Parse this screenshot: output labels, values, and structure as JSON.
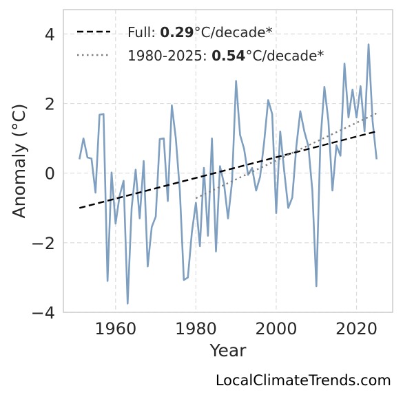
{
  "chart_data": {
    "type": "line",
    "xlabel": "Year",
    "ylabel": "Anomaly (°C)",
    "xlim": [
      1947,
      2029
    ],
    "ylim": [
      -4,
      4.7
    ],
    "x_ticks": [
      1960,
      1980,
      2000,
      2020
    ],
    "y_ticks": [
      -4,
      -2,
      0,
      2,
      4
    ],
    "y_tick_labels": [
      "−4",
      "−2",
      "0",
      "2",
      "4"
    ],
    "grid": true,
    "legend_position": "top-left",
    "series": [
      {
        "style": "solid",
        "color": "#7f9fc0",
        "x": [
          1951,
          1952,
          1953,
          1954,
          1955,
          1956,
          1957,
          1958,
          1959,
          1960,
          1961,
          1962,
          1963,
          1964,
          1965,
          1966,
          1967,
          1968,
          1969,
          1970,
          1971,
          1972,
          1973,
          1974,
          1975,
          1976,
          1977,
          1978,
          1979,
          1980,
          1981,
          1982,
          1983,
          1984,
          1985,
          1986,
          1987,
          1988,
          1989,
          1990,
          1991,
          1992,
          1993,
          1994,
          1995,
          1996,
          1997,
          1998,
          1999,
          2000,
          2001,
          2002,
          2003,
          2004,
          2005,
          2006,
          2007,
          2008,
          2009,
          2010,
          2011,
          2012,
          2013,
          2014,
          2015,
          2016,
          2017,
          2018,
          2019,
          2020,
          2021,
          2022,
          2023,
          2024,
          2025
        ],
        "values": [
          0.4,
          1.0,
          0.45,
          0.42,
          -0.56,
          1.68,
          1.7,
          -3.1,
          0.02,
          -1.45,
          -0.65,
          -0.22,
          -3.75,
          -1.0,
          0.1,
          -1.3,
          0.35,
          -2.68,
          -1.55,
          -1.25,
          0.98,
          1.0,
          -0.8,
          1.95,
          1.0,
          -0.5,
          -3.07,
          -3.0,
          -1.7,
          -0.85,
          -2.1,
          0.15,
          -1.8,
          1.0,
          -2.25,
          0.2,
          -0.3,
          -1.3,
          -0.25,
          2.65,
          1.1,
          0.7,
          -0.05,
          0.15,
          -0.5,
          -0.1,
          0.9,
          2.1,
          1.7,
          -1.15,
          1.2,
          0.05,
          -1.0,
          -0.7,
          0.75,
          1.78,
          1.2,
          0.78,
          -0.5,
          -3.25,
          0.9,
          2.48,
          1.5,
          -0.5,
          0.8,
          0.5,
          3.15,
          1.6,
          2.4,
          1.6,
          2.5,
          1.2,
          3.7,
          1.5,
          0.4
        ]
      },
      {
        "name_prefix": "Full: ",
        "name_value": "0.29",
        "name_suffix": "°C/decade*",
        "style": "dashed",
        "color": "#000000",
        "x": [
          1951,
          2025
        ],
        "values": [
          -1.0,
          1.2
        ]
      },
      {
        "name_prefix": "1980-2025: ",
        "name_value": "0.54",
        "name_suffix": "°C/decade*",
        "style": "dotted",
        "color": "#808080",
        "x": [
          1980,
          2025
        ],
        "values": [
          -0.72,
          1.72
        ]
      }
    ]
  },
  "credit": "LocalClimateTrends.com"
}
